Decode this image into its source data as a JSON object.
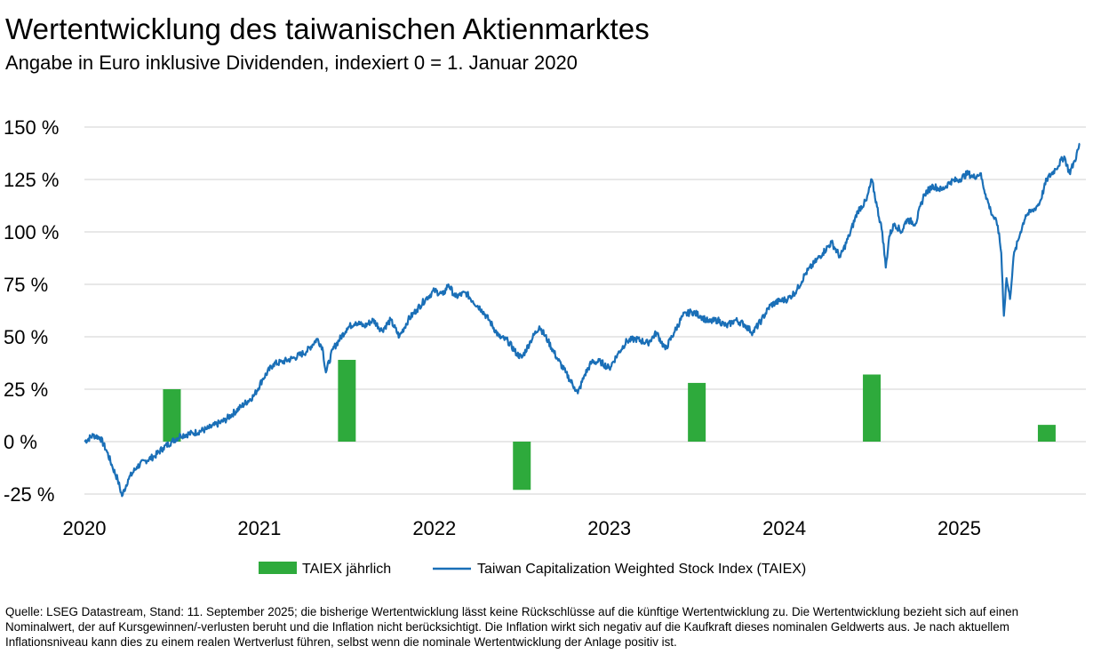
{
  "chart_data": {
    "type": "line",
    "title": "Wertentwicklung des taiwanischen Aktienmarktes",
    "subtitle": "Angabe in Euro inklusive Dividenden, indexiert 0 = 1. Januar 2020",
    "y_ticks": [
      "150 %",
      "125 %",
      "100 %",
      "75 %",
      "50 %",
      "25 %",
      "0 %",
      "-25 %"
    ],
    "y_tick_values": [
      150,
      125,
      100,
      75,
      50,
      25,
      0,
      -25
    ],
    "x_ticks": [
      "2020",
      "2021",
      "2022",
      "2023",
      "2024",
      "2025"
    ],
    "x_tick_values": [
      2020,
      2021,
      2022,
      2023,
      2024,
      2025
    ],
    "ylim": [
      -27,
      150
    ],
    "xlim": [
      2020,
      2025.7
    ],
    "grid": true,
    "legend_position": "bottom-center",
    "series": [
      {
        "name": "TAIEX jährlich",
        "type": "bar",
        "color": "#2eaa3c",
        "points": [
          {
            "x": 2020.5,
            "y": 25
          },
          {
            "x": 2021.5,
            "y": 39
          },
          {
            "x": 2022.5,
            "y": -23
          },
          {
            "x": 2023.5,
            "y": 28
          },
          {
            "x": 2024.5,
            "y": 32
          },
          {
            "x": 2025.5,
            "y": 8
          }
        ]
      },
      {
        "name": "Taiwan Capitalization Weighted Stock Index (TAIEX)",
        "type": "line",
        "color": "#1a6fb7",
        "points": [
          {
            "x": 2020.0,
            "y": 0
          },
          {
            "x": 2020.05,
            "y": 3
          },
          {
            "x": 2020.09,
            "y": 2
          },
          {
            "x": 2020.13,
            "y": -5
          },
          {
            "x": 2020.16,
            "y": -12
          },
          {
            "x": 2020.19,
            "y": -18
          },
          {
            "x": 2020.215,
            "y": -26
          },
          {
            "x": 2020.25,
            "y": -18
          },
          {
            "x": 2020.3,
            "y": -12
          },
          {
            "x": 2020.35,
            "y": -9
          },
          {
            "x": 2020.4,
            "y": -7
          },
          {
            "x": 2020.45,
            "y": -3
          },
          {
            "x": 2020.5,
            "y": 0
          },
          {
            "x": 2020.55,
            "y": 3
          },
          {
            "x": 2020.62,
            "y": 4
          },
          {
            "x": 2020.7,
            "y": 6
          },
          {
            "x": 2020.8,
            "y": 10
          },
          {
            "x": 2020.9,
            "y": 17
          },
          {
            "x": 2020.97,
            "y": 22
          },
          {
            "x": 2021.02,
            "y": 30
          },
          {
            "x": 2021.08,
            "y": 37
          },
          {
            "x": 2021.13,
            "y": 38
          },
          {
            "x": 2021.2,
            "y": 40
          },
          {
            "x": 2021.27,
            "y": 43
          },
          {
            "x": 2021.33,
            "y": 49
          },
          {
            "x": 2021.36,
            "y": 45
          },
          {
            "x": 2021.38,
            "y": 33
          },
          {
            "x": 2021.42,
            "y": 44
          },
          {
            "x": 2021.5,
            "y": 54
          },
          {
            "x": 2021.55,
            "y": 57
          },
          {
            "x": 2021.6,
            "y": 55
          },
          {
            "x": 2021.65,
            "y": 58
          },
          {
            "x": 2021.7,
            "y": 53
          },
          {
            "x": 2021.75,
            "y": 58
          },
          {
            "x": 2021.8,
            "y": 50
          },
          {
            "x": 2021.85,
            "y": 58
          },
          {
            "x": 2021.9,
            "y": 63
          },
          {
            "x": 2021.95,
            "y": 68
          },
          {
            "x": 2022.0,
            "y": 72
          },
          {
            "x": 2022.05,
            "y": 70
          },
          {
            "x": 2022.08,
            "y": 75
          },
          {
            "x": 2022.12,
            "y": 69
          },
          {
            "x": 2022.18,
            "y": 71
          },
          {
            "x": 2022.22,
            "y": 67
          },
          {
            "x": 2022.27,
            "y": 63
          },
          {
            "x": 2022.32,
            "y": 57
          },
          {
            "x": 2022.37,
            "y": 50
          },
          {
            "x": 2022.42,
            "y": 48
          },
          {
            "x": 2022.47,
            "y": 42
          },
          {
            "x": 2022.5,
            "y": 40
          },
          {
            "x": 2022.55,
            "y": 48
          },
          {
            "x": 2022.6,
            "y": 55
          },
          {
            "x": 2022.65,
            "y": 48
          },
          {
            "x": 2022.7,
            "y": 40
          },
          {
            "x": 2022.75,
            "y": 33
          },
          {
            "x": 2022.8,
            "y": 26
          },
          {
            "x": 2022.82,
            "y": 23
          },
          {
            "x": 2022.86,
            "y": 32
          },
          {
            "x": 2022.9,
            "y": 38
          },
          {
            "x": 2022.95,
            "y": 38
          },
          {
            "x": 2023.0,
            "y": 35
          },
          {
            "x": 2023.05,
            "y": 42
          },
          {
            "x": 2023.1,
            "y": 48
          },
          {
            "x": 2023.15,
            "y": 49
          },
          {
            "x": 2023.22,
            "y": 47
          },
          {
            "x": 2023.27,
            "y": 52
          },
          {
            "x": 2023.32,
            "y": 44
          },
          {
            "x": 2023.37,
            "y": 52
          },
          {
            "x": 2023.42,
            "y": 60
          },
          {
            "x": 2023.47,
            "y": 62
          },
          {
            "x": 2023.52,
            "y": 60
          },
          {
            "x": 2023.57,
            "y": 57
          },
          {
            "x": 2023.62,
            "y": 58
          },
          {
            "x": 2023.67,
            "y": 55
          },
          {
            "x": 2023.72,
            "y": 58
          },
          {
            "x": 2023.77,
            "y": 56
          },
          {
            "x": 2023.82,
            "y": 52
          },
          {
            "x": 2023.87,
            "y": 58
          },
          {
            "x": 2023.92,
            "y": 65
          },
          {
            "x": 2023.97,
            "y": 67
          },
          {
            "x": 2024.02,
            "y": 68
          },
          {
            "x": 2024.07,
            "y": 72
          },
          {
            "x": 2024.12,
            "y": 80
          },
          {
            "x": 2024.17,
            "y": 85
          },
          {
            "x": 2024.22,
            "y": 90
          },
          {
            "x": 2024.27,
            "y": 95
          },
          {
            "x": 2024.32,
            "y": 88
          },
          {
            "x": 2024.37,
            "y": 98
          },
          {
            "x": 2024.42,
            "y": 110
          },
          {
            "x": 2024.47,
            "y": 115
          },
          {
            "x": 2024.5,
            "y": 125
          },
          {
            "x": 2024.53,
            "y": 112
          },
          {
            "x": 2024.56,
            "y": 100
          },
          {
            "x": 2024.58,
            "y": 83
          },
          {
            "x": 2024.6,
            "y": 98
          },
          {
            "x": 2024.63,
            "y": 104
          },
          {
            "x": 2024.67,
            "y": 100
          },
          {
            "x": 2024.7,
            "y": 106
          },
          {
            "x": 2024.75,
            "y": 104
          },
          {
            "x": 2024.8,
            "y": 118
          },
          {
            "x": 2024.85,
            "y": 122
          },
          {
            "x": 2024.9,
            "y": 120
          },
          {
            "x": 2024.95,
            "y": 124
          },
          {
            "x": 2025.0,
            "y": 125
          },
          {
            "x": 2025.05,
            "y": 128
          },
          {
            "x": 2025.08,
            "y": 126
          },
          {
            "x": 2025.12,
            "y": 128
          },
          {
            "x": 2025.15,
            "y": 118
          },
          {
            "x": 2025.18,
            "y": 110
          },
          {
            "x": 2025.22,
            "y": 103
          },
          {
            "x": 2025.24,
            "y": 90
          },
          {
            "x": 2025.255,
            "y": 60
          },
          {
            "x": 2025.27,
            "y": 78
          },
          {
            "x": 2025.29,
            "y": 68
          },
          {
            "x": 2025.31,
            "y": 88
          },
          {
            "x": 2025.35,
            "y": 100
          },
          {
            "x": 2025.38,
            "y": 108
          },
          {
            "x": 2025.42,
            "y": 110
          },
          {
            "x": 2025.46,
            "y": 114
          },
          {
            "x": 2025.5,
            "y": 125
          },
          {
            "x": 2025.55,
            "y": 130
          },
          {
            "x": 2025.6,
            "y": 136
          },
          {
            "x": 2025.63,
            "y": 128
          },
          {
            "x": 2025.66,
            "y": 134
          },
          {
            "x": 2025.69,
            "y": 142
          }
        ]
      }
    ]
  },
  "footnote": "Quelle: LSEG Datastream, Stand: 11. September 2025; die bisherige Wertentwicklung lässt keine Rückschlüsse auf die künftige Wertentwicklung zu. Die Wertentwicklung bezieht sich auf einen Nominalwert, der auf Kursgewinnen/-verlusten beruht und die Inflation nicht berücksichtigt. Die Inflation wirkt sich negativ auf die Kaufkraft dieses nominalen Geldwerts aus. Je nach aktuellem Inflationsniveau kann dies zu einem realen Wertverlust führen, selbst wenn die nominale Wertentwicklung der Anlage positiv ist."
}
